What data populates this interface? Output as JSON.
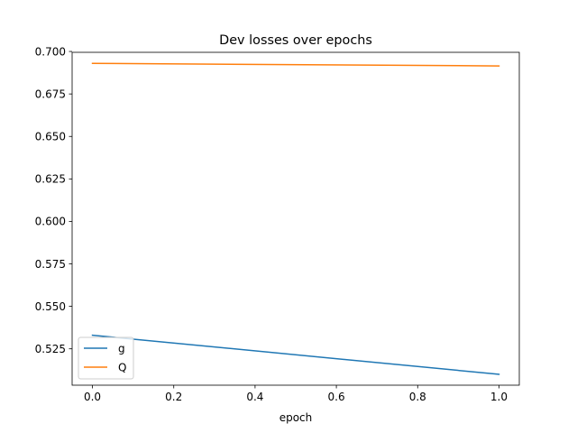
{
  "chart_data": {
    "type": "line",
    "title": "Dev losses over epochs",
    "xlabel": "epoch",
    "ylabel": "",
    "x": [
      0.0,
      1.0
    ],
    "series": [
      {
        "name": "g",
        "color": "#1f77b4",
        "values": [
          0.533,
          0.51
        ]
      },
      {
        "name": "Q",
        "color": "#ff7f0e",
        "values": [
          0.693,
          0.6915
        ]
      }
    ],
    "xlim": [
      -0.05,
      1.05
    ],
    "ylim": [
      0.5036,
      0.6995
    ],
    "xticks": [
      0.0,
      0.2,
      0.4,
      0.6,
      0.8,
      1.0
    ],
    "xtick_labels": [
      "0.0",
      "0.2",
      "0.4",
      "0.6",
      "0.8",
      "1.0"
    ],
    "yticks": [
      0.525,
      0.55,
      0.575,
      0.6,
      0.625,
      0.65,
      0.675,
      0.7
    ],
    "ytick_labels": [
      "0.525",
      "0.550",
      "0.575",
      "0.600",
      "0.625",
      "0.650",
      "0.675",
      "0.700"
    ],
    "grid": false,
    "legend_position": "lower-left"
  }
}
